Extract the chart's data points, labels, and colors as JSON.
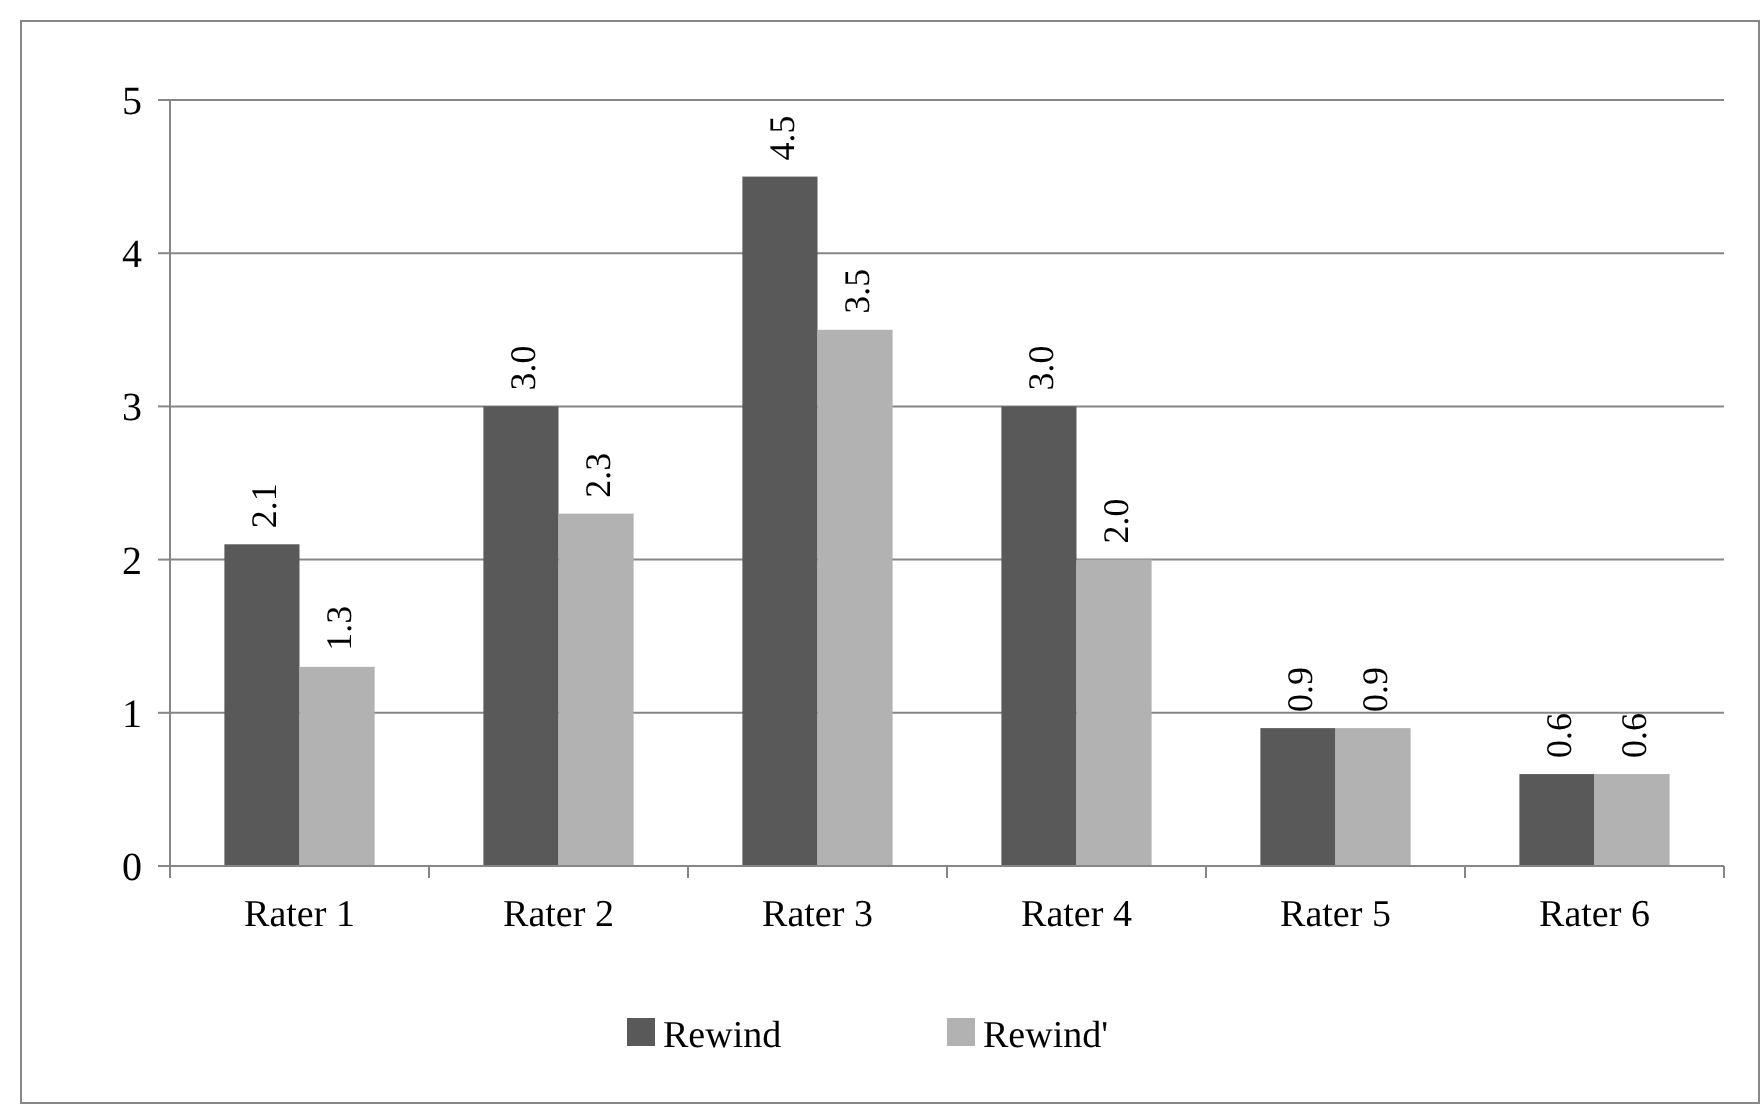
{
  "chart_data": {
    "type": "bar",
    "categories": [
      "Rater 1",
      "Rater 2",
      "Rater 3",
      "Rater 4",
      "Rater 5",
      "Rater 6"
    ],
    "series": [
      {
        "name": "Rewind",
        "color": "#595959",
        "values": [
          2.1,
          3.0,
          4.5,
          3.0,
          0.9,
          0.6
        ],
        "value_labels": [
          "2.1",
          "3.0",
          "4.5",
          "3.0",
          "0.9",
          "0.6"
        ]
      },
      {
        "name": "Rewind'",
        "color": "#b2b2b2",
        "values": [
          1.3,
          2.3,
          3.5,
          2.0,
          0.9,
          0.6
        ],
        "value_labels": [
          "1.3",
          "2.3",
          "3.5",
          "2.0",
          "0.9",
          "0.6"
        ]
      }
    ],
    "ylim": [
      0,
      5
    ],
    "yticks": [
      0,
      1,
      2,
      3,
      4,
      5
    ],
    "grid": "y",
    "legend": "bottom"
  }
}
